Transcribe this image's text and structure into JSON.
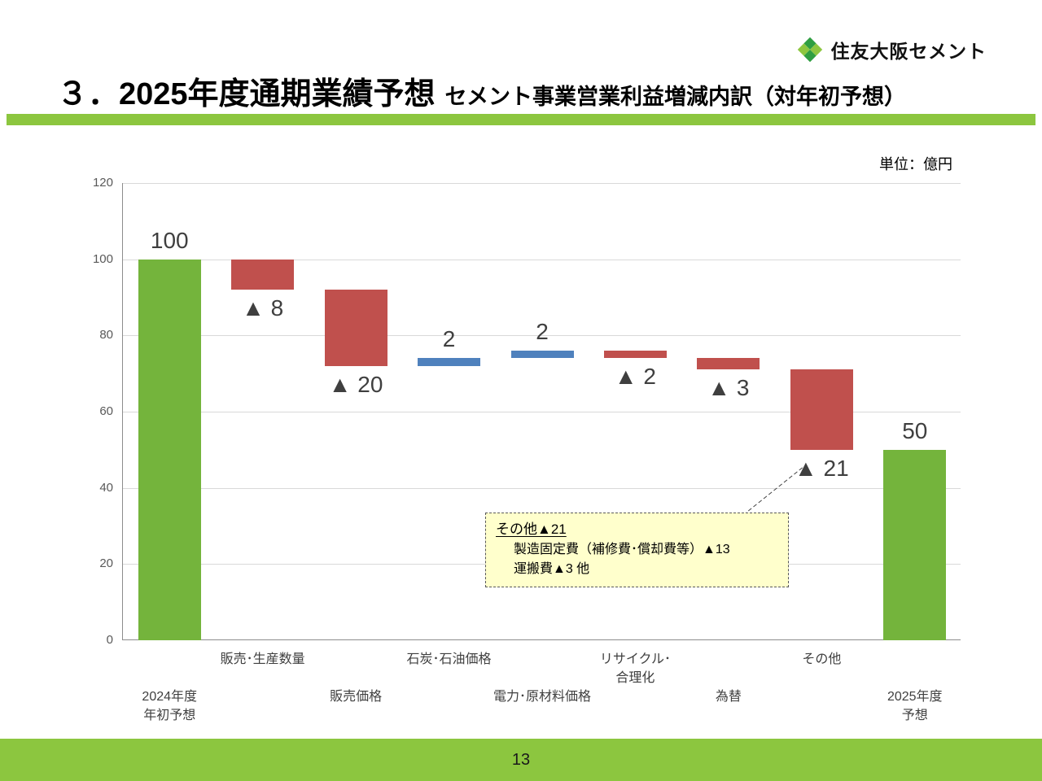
{
  "logo": {
    "company_name": "住友大阪セメント"
  },
  "header": {
    "title_main": "３．2025年度通期業績予想",
    "title_sub": "セメント事業営業利益増減内訳（対年初予想）"
  },
  "chart": {
    "unit_label": "単位：億円"
  },
  "chart_data": {
    "type": "waterfall",
    "title": "セメント事業営業利益増減内訳（対年初予想）",
    "unit": "億円",
    "ylim": [
      0,
      120
    ],
    "ytick_interval": 20,
    "grid": true,
    "legend": false,
    "colors": {
      "total": "#74b43c",
      "decrease": "#c0504d",
      "increase": "#4f81bd"
    },
    "bars": [
      {
        "category": [
          "2024年度",
          "年初予想"
        ],
        "label_row": 2,
        "start": 0,
        "end": 100,
        "kind": "total",
        "value": 100,
        "value_label": "100",
        "label_position": "above"
      },
      {
        "category": [
          "販売･生産数量"
        ],
        "label_row": 1,
        "start": 100,
        "end": 92,
        "kind": "decrease",
        "value": -8,
        "value_label": "▲ 8",
        "label_position": "below"
      },
      {
        "category": [
          "販売価格"
        ],
        "label_row": 2,
        "start": 92,
        "end": 72,
        "kind": "decrease",
        "value": -20,
        "value_label": "▲ 20",
        "label_position": "below"
      },
      {
        "category": [
          "石炭･石油価格"
        ],
        "label_row": 1,
        "start": 72,
        "end": 74,
        "kind": "increase",
        "value": 2,
        "value_label": "2",
        "label_position": "above"
      },
      {
        "category": [
          "電力･原材料価格"
        ],
        "label_row": 2,
        "start": 74,
        "end": 76,
        "kind": "increase",
        "value": 2,
        "value_label": "2",
        "label_position": "above"
      },
      {
        "category": [
          "リサイクル･",
          "合理化"
        ],
        "label_row": 1,
        "start": 76,
        "end": 74,
        "kind": "decrease",
        "value": -2,
        "value_label": "▲ 2",
        "label_position": "below"
      },
      {
        "category": [
          "為替"
        ],
        "label_row": 2,
        "start": 74,
        "end": 71,
        "kind": "decrease",
        "value": -3,
        "value_label": "▲ 3",
        "label_position": "below"
      },
      {
        "category": [
          "その他"
        ],
        "label_row": 1,
        "start": 71,
        "end": 50,
        "kind": "decrease",
        "value": -21,
        "value_label": "▲ 21",
        "label_position": "below"
      },
      {
        "category": [
          "2025年度",
          "予想"
        ],
        "label_row": 2,
        "start": 0,
        "end": 50,
        "kind": "total",
        "value": 50,
        "value_label": "50",
        "label_position": "above"
      }
    ]
  },
  "annotation": {
    "title": "その他▲21",
    "details": [
      "製造固定費（補修費･償却費等）▲13",
      "運搬費▲3 他"
    ]
  },
  "footer": {
    "page_number": "13"
  },
  "theme": {
    "band_color": "#8cc63f",
    "logo_green_dark": "#2f9e41",
    "logo_green_light": "#8dc63f"
  }
}
